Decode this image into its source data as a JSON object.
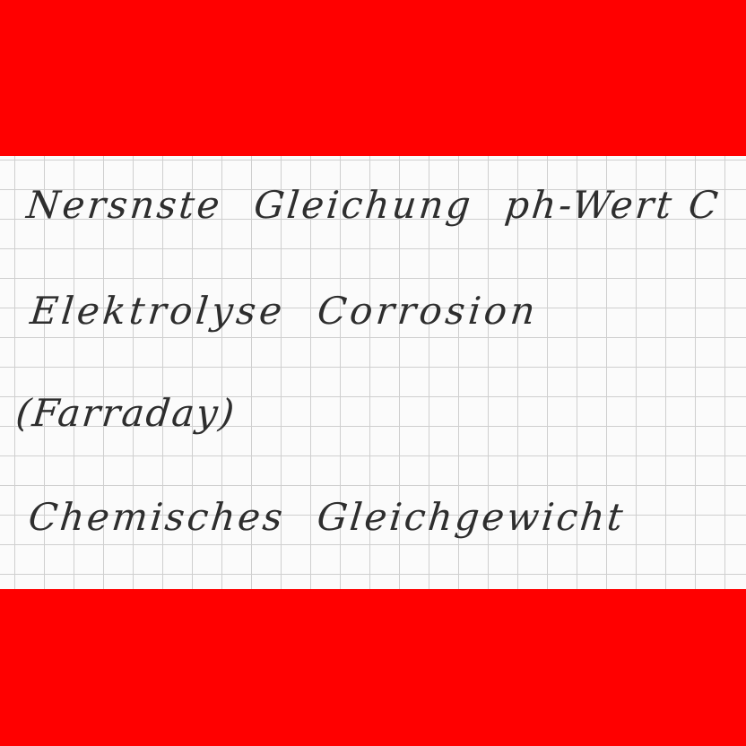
{
  "note": {
    "line1": [
      "Nersnste",
      "Gleichung",
      "ph-Wert C"
    ],
    "line2": [
      "Elektrolyse",
      "Corrosion"
    ],
    "line3": "(Farraday)",
    "line4": [
      "Chemisches",
      "Gleichgewicht"
    ]
  },
  "colors": {
    "band": "#ff0000",
    "paper": "#fbfbfb",
    "grid": "#cfcfcf",
    "ink": "#2e2e2e"
  }
}
